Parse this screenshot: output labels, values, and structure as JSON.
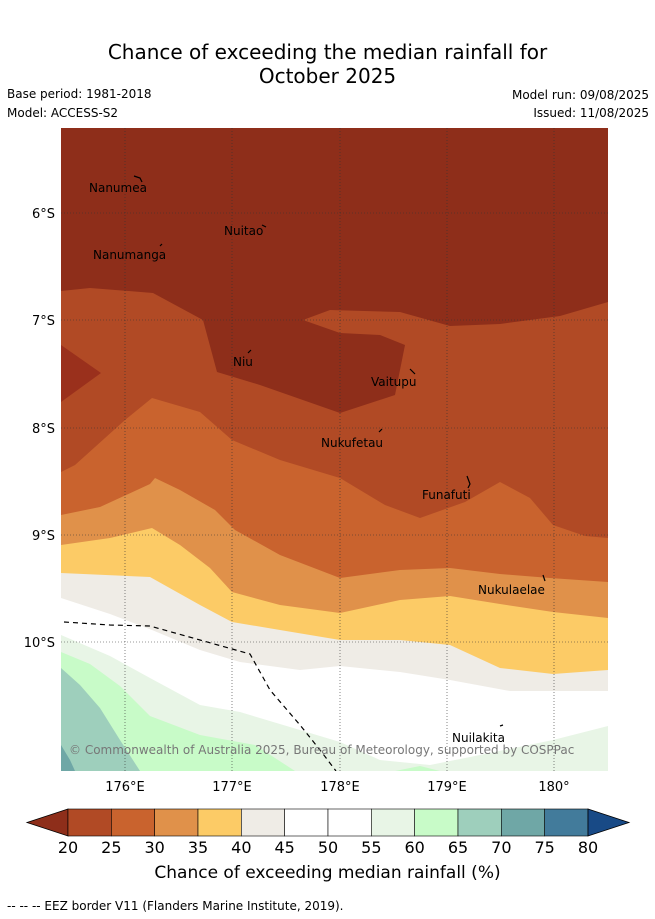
{
  "title_line1": "Chance of exceeding the median rainfall for",
  "title_line2": "October 2025",
  "base_period": "Base period: 1981-2018",
  "model": "Model: ACCESS-S2",
  "model_run": "Model run: 09/08/2025",
  "issued": "Issued: 11/08/2025",
  "copyright": "© Commonwealth of Australia 2025, Bureau of Meteorology, supported by COSPPac",
  "lat_labels": [
    "6°S",
    "7°S",
    "8°S",
    "9°S",
    "10°S"
  ],
  "lon_labels": [
    "176°E",
    "177°E",
    "178°E",
    "179°E",
    "180°"
  ],
  "islands": [
    {
      "name": "Nanumea"
    },
    {
      "name": "Nuitao"
    },
    {
      "name": "Nanumanga"
    },
    {
      "name": "Niu"
    },
    {
      "name": "Vaitupu"
    },
    {
      "name": "Nukufetau"
    },
    {
      "name": "Funafuti"
    },
    {
      "name": "Nukulaelae"
    },
    {
      "name": "Nuilakita"
    }
  ],
  "colorbar": {
    "ticks": [
      "20",
      "25",
      "30",
      "35",
      "40",
      "45",
      "50",
      "55",
      "60",
      "65",
      "70",
      "75",
      "80"
    ],
    "colors": {
      "below_20": "#8e2e1a",
      "20_25": "#b14a25",
      "25_30": "#c9632e",
      "30_35": "#e0914a",
      "35_40": "#fccb66",
      "40_45": "#efece6",
      "45_50": "#ffffff",
      "50_55": "#ffffff",
      "55_60": "#e8f5e6",
      "60_65": "#c8fbc8",
      "65_70": "#9ecfbc",
      "70_75": "#6fa7a6",
      "75_80": "#427b9b",
      "above_80": "#184a86"
    },
    "label": "Chance of exceeding median rainfall (%)"
  },
  "legend_footer": "--  --  -- EEZ border V11 (Flanders Marine Institute, 2019)."
}
